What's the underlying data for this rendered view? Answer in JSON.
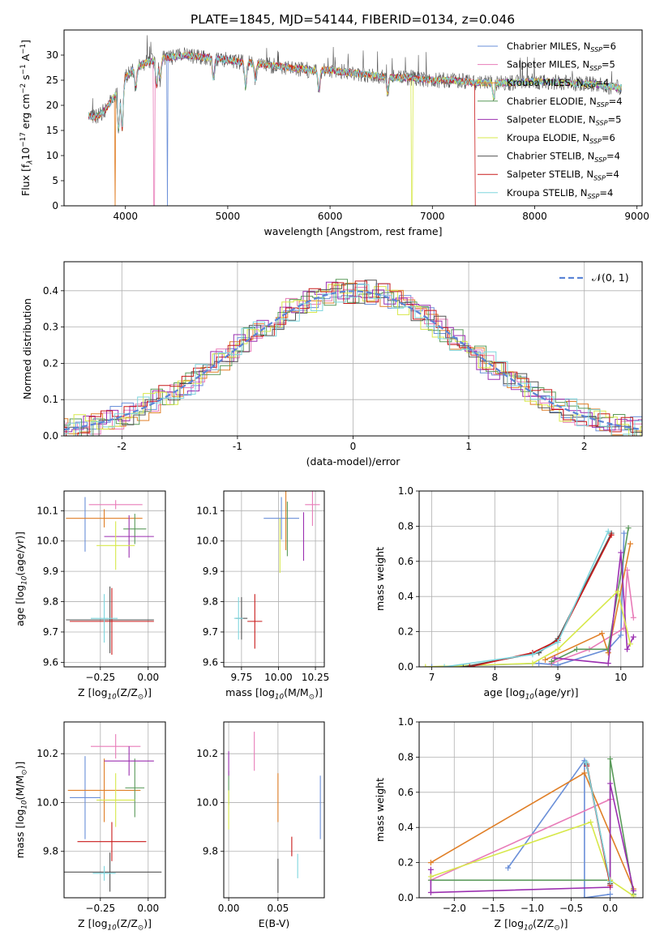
{
  "figure": {
    "title": "PLATE=1845, MJD=54144, FIBERID=0134, z=0.046"
  },
  "colors": {
    "series": [
      "#6a8fd8",
      "#e87bb8",
      "#e07f27",
      "#5a9a5a",
      "#9b2fb0",
      "#d7e84a",
      "#555555",
      "#c91a1a",
      "#7ed6de"
    ],
    "normal_curve": "#5b84d6",
    "grid": "#b0b0b0"
  },
  "series_names": [
    {
      "pre": "Chabrier MILES, N",
      "sub": "SSP",
      "post": "=6"
    },
    {
      "pre": "Salpeter MILES, N",
      "sub": "SSP",
      "post": "=5"
    },
    {
      "pre": "Kroupa MILES, N",
      "sub": "SSP",
      "post": "=4"
    },
    {
      "pre": "Chabrier ELODIE, N",
      "sub": "SSP",
      "post": "=4"
    },
    {
      "pre": "Salpeter ELODIE, N",
      "sub": "SSP",
      "post": "=5"
    },
    {
      "pre": "Kroupa ELODIE, N",
      "sub": "SSP",
      "post": "=6"
    },
    {
      "pre": "Chabrier STELIB, N",
      "sub": "SSP",
      "post": "=4"
    },
    {
      "pre": "Salpeter STELIB, N",
      "sub": "SSP",
      "post": "=4"
    },
    {
      "pre": "Kroupa STELIB, N",
      "sub": "SSP",
      "post": "=4"
    }
  ],
  "chart_data": [
    {
      "id": "spectrum",
      "type": "line",
      "xlabel": "wavelength [Angstrom, rest frame]",
      "ylabel": {
        "pre": "Flux [f",
        "sub": "λ",
        "mid": "10",
        "sup": "−17",
        "post": " erg cm",
        "sup2": "−2",
        "post2": " s",
        "sup3": "−1",
        "post3": " A",
        "sup4": "−1",
        "end": "]"
      },
      "xlim": [
        3400,
        9050
      ],
      "ylim": [
        0,
        35
      ],
      "xticks": [
        4000,
        5000,
        6000,
        7000,
        8000,
        9000
      ],
      "yticks": [
        0,
        5,
        10,
        15,
        20,
        25,
        30
      ],
      "grid": false,
      "legend": "top-right",
      "continuum": {
        "x": [
          3640,
          3700,
          3800,
          3900,
          4000,
          4100,
          4200,
          4400,
          4600,
          4800,
          5000,
          5200,
          5400,
          5600,
          5800,
          6000,
          6200,
          6400,
          6600,
          6800,
          7000,
          7200,
          7400,
          7600,
          7800,
          8000,
          8200,
          8400,
          8600,
          8800
        ],
        "y": [
          18,
          17.5,
          19,
          22,
          25.5,
          27.5,
          28.5,
          29.5,
          30,
          29.5,
          29,
          28.5,
          28,
          27.5,
          27,
          27,
          26.5,
          26,
          25.5,
          25.5,
          25,
          25,
          24.5,
          24.5,
          24.5,
          24.8,
          24.6,
          24.3,
          24.2,
          23.5
        ]
      },
      "absorption_dips": [
        {
          "x": 3933,
          "depth": 8
        },
        {
          "x": 3968,
          "depth": 9
        },
        {
          "x": 4101,
          "depth": 4
        },
        {
          "x": 4305,
          "depth": 5
        },
        {
          "x": 4340,
          "depth": 4
        },
        {
          "x": 4861,
          "depth": 4
        },
        {
          "x": 5175,
          "depth": 5
        },
        {
          "x": 5270,
          "depth": 3
        },
        {
          "x": 5890,
          "depth": 4
        },
        {
          "x": 6563,
          "depth": 3
        },
        {
          "x": 7600,
          "depth": 3
        }
      ],
      "drops_to_zero": [
        {
          "series": 2,
          "x": 3900
        },
        {
          "series": 1,
          "x": 4280
        },
        {
          "series": 0,
          "x": 4410
        },
        {
          "series": 5,
          "x": 6800
        },
        {
          "series": 7,
          "x": 7420
        }
      ]
    },
    {
      "id": "residuals",
      "type": "area",
      "xlabel": "(data-model)/error",
      "ylabel": "Normed distribution",
      "xlim": [
        -2.5,
        2.5
      ],
      "ylim": [
        0,
        0.48
      ],
      "xticks": [
        -2,
        -1,
        0,
        1,
        2
      ],
      "yticks": [
        0.0,
        0.1,
        0.2,
        0.3,
        0.4
      ],
      "grid": true,
      "legend": "top-right",
      "bin_width": 0.1,
      "normal_label": "𝒩(0, 1)"
    },
    {
      "id": "age_vs_Z",
      "type": "scatter",
      "xlabel": {
        "pre": "Z [log",
        "sub": "10",
        "post": "(Z/Z",
        "sub2": "⊙",
        "end": ")]"
      },
      "ylabel": {
        "pre": "age  [log",
        "sub": "10",
        "post": "(age/yr)]"
      },
      "xlim": [
        -0.44,
        0.09
      ],
      "ylim": [
        9.585,
        10.165
      ],
      "xticks": [
        -0.25,
        0.0
      ],
      "xtick_labels": [
        "−0.25",
        "0.00"
      ],
      "yticks": [
        9.6,
        9.7,
        9.8,
        9.9,
        10.0,
        10.1
      ],
      "grid": true,
      "points": [
        {
          "s": 0,
          "x": -0.33,
          "y": 10.055,
          "xe": 0.0,
          "ye": 0.09
        },
        {
          "s": 1,
          "x": -0.17,
          "y": 10.12,
          "xe": 0.14,
          "ye": 0.015
        },
        {
          "s": 2,
          "x": -0.23,
          "y": 10.075,
          "xe": 0.2,
          "ye": 0.03
        },
        {
          "s": 3,
          "x": -0.07,
          "y": 10.04,
          "xe": 0.06,
          "ye": 0.05
        },
        {
          "s": 4,
          "x": -0.1,
          "y": 10.015,
          "xe": 0.13,
          "ye": 0.07
        },
        {
          "s": 5,
          "x": -0.17,
          "y": 9.985,
          "xe": 0.1,
          "ye": 0.08
        },
        {
          "s": 6,
          "x": -0.2,
          "y": 9.74,
          "xe": 0.23,
          "ye": 0.11
        },
        {
          "s": 7,
          "x": -0.19,
          "y": 9.735,
          "xe": 0.22,
          "ye": 0.11
        },
        {
          "s": 8,
          "x": -0.23,
          "y": 9.745,
          "xe": 0.07,
          "ye": 0.08
        }
      ]
    },
    {
      "id": "age_vs_mass",
      "type": "scatter",
      "xlabel": {
        "pre": "mass [log",
        "sub": "10",
        "post": "(M/M",
        "sub2": "⊙",
        "end": ")]"
      },
      "ylabel": "",
      "xlim": [
        9.63,
        10.31
      ],
      "ylim": [
        9.585,
        10.165
      ],
      "xticks": [
        9.75,
        10.0,
        10.25
      ],
      "xtick_labels": [
        "9.75",
        "10.00",
        "10.25"
      ],
      "yticks": [
        9.6,
        9.7,
        9.8,
        9.9,
        10.0,
        10.1
      ],
      "grid": true,
      "points": [
        {
          "s": 0,
          "x": 10.02,
          "y": 10.075,
          "xe": 0.12,
          "ye": 0.07
        },
        {
          "s": 1,
          "x": 10.23,
          "y": 10.12,
          "xe": 0.05,
          "ye": 0.07
        },
        {
          "s": 2,
          "x": 10.05,
          "y": 10.07,
          "xe": 0.0,
          "ye": 0.1
        },
        {
          "s": 3,
          "x": 10.06,
          "y": 10.04,
          "xe": 0.0,
          "ye": 0.09
        },
        {
          "s": 4,
          "x": 10.17,
          "y": 10.015,
          "xe": 0.0,
          "ye": 0.08
        },
        {
          "s": 5,
          "x": 10.01,
          "y": 9.985,
          "xe": 0.0,
          "ye": 0.09
        },
        {
          "s": 6,
          "x": 9.75,
          "y": 9.745,
          "xe": 0.04,
          "ye": 0.07
        },
        {
          "s": 7,
          "x": 9.84,
          "y": 9.735,
          "xe": 0.05,
          "ye": 0.09
        },
        {
          "s": 8,
          "x": 9.73,
          "y": 9.745,
          "xe": 0.03,
          "ye": 0.07
        }
      ]
    },
    {
      "id": "massweight_vs_age",
      "type": "line",
      "xlabel": {
        "pre": "age  [log",
        "sub": "10",
        "post": "(age/yr)]"
      },
      "ylabel": "mass weight",
      "xlim": [
        6.8,
        10.35
      ],
      "ylim": [
        0,
        1
      ],
      "xticks": [
        7,
        8,
        9,
        10
      ],
      "yticks": [
        0.0,
        0.2,
        0.4,
        0.6,
        0.8,
        1.0
      ],
      "grid": true,
      "series": [
        {
          "s": 0,
          "x": [
            7.0,
            8.7,
            9.0,
            9.8,
            10.0,
            10.05
          ],
          "y": [
            0.0,
            0.02,
            0.01,
            0.1,
            0.18,
            0.76
          ]
        },
        {
          "s": 1,
          "x": [
            8.9,
            9.5,
            10.05,
            10.1,
            10.2
          ],
          "y": [
            0.02,
            0.1,
            0.22,
            0.55,
            0.28
          ]
        },
        {
          "s": 2,
          "x": [
            8.8,
            9.7,
            9.8,
            10.15
          ],
          "y": [
            0.04,
            0.19,
            0.08,
            0.7
          ]
        },
        {
          "s": 3,
          "x": [
            8.9,
            9.3,
            9.8,
            10.12
          ],
          "y": [
            0.03,
            0.1,
            0.1,
            0.79
          ]
        },
        {
          "s": 4,
          "x": [
            8.95,
            9.8,
            10.0,
            10.1,
            10.2
          ],
          "y": [
            0.05,
            0.02,
            0.65,
            0.1,
            0.17
          ]
        },
        {
          "s": 5,
          "x": [
            6.9,
            8.6,
            9.0,
            9.95,
            10.15
          ],
          "y": [
            0.0,
            0.02,
            0.1,
            0.43,
            0.13
          ]
        },
        {
          "s": 6,
          "x": [
            7.5,
            8.7,
            9.0,
            9.85
          ],
          "y": [
            0.0,
            0.08,
            0.16,
            0.76
          ]
        },
        {
          "s": 7,
          "x": [
            7.6,
            8.6,
            9.0,
            9.85
          ],
          "y": [
            0.0,
            0.08,
            0.15,
            0.75
          ]
        },
        {
          "s": 8,
          "x": [
            7.2,
            8.6,
            9.0,
            9.8
          ],
          "y": [
            0.0,
            0.07,
            0.14,
            0.77
          ]
        }
      ]
    },
    {
      "id": "mass_vs_Z",
      "type": "scatter",
      "xlabel": {
        "pre": "Z [log",
        "sub": "10",
        "post": "(Z/Z",
        "sub2": "⊙",
        "end": ")]"
      },
      "ylabel": {
        "pre": "mass [log",
        "sub": "10",
        "post": "(M/M",
        "sub2": "⊙",
        "end": ")]"
      },
      "xlim": [
        -0.44,
        0.09
      ],
      "ylim": [
        9.61,
        10.33
      ],
      "xticks": [
        -0.25,
        0.0
      ],
      "xtick_labels": [
        "−0.25",
        "0.00"
      ],
      "yticks": [
        9.8,
        10.0,
        10.2
      ],
      "grid": true,
      "points": [
        {
          "s": 0,
          "x": -0.33,
          "y": 10.02,
          "xe": 0.08,
          "ye": 0.17
        },
        {
          "s": 1,
          "x": -0.17,
          "y": 10.23,
          "xe": 0.13,
          "ye": 0.05
        },
        {
          "s": 2,
          "x": -0.23,
          "y": 10.05,
          "xe": 0.19,
          "ye": 0.13
        },
        {
          "s": 3,
          "x": -0.07,
          "y": 10.06,
          "xe": 0.05,
          "ye": 0.12
        },
        {
          "s": 4,
          "x": -0.1,
          "y": 10.17,
          "xe": 0.13,
          "ye": 0.06
        },
        {
          "s": 5,
          "x": -0.17,
          "y": 10.01,
          "xe": 0.1,
          "ye": 0.11
        },
        {
          "s": 6,
          "x": -0.2,
          "y": 9.715,
          "xe": 0.27,
          "ye": 0.08
        },
        {
          "s": 7,
          "x": -0.19,
          "y": 9.84,
          "xe": 0.18,
          "ye": 0.08
        },
        {
          "s": 8,
          "x": -0.23,
          "y": 9.71,
          "xe": 0.06,
          "ye": 0.03
        }
      ]
    },
    {
      "id": "mass_vs_EBV",
      "type": "scatter",
      "xlabel": "E(B-V)",
      "ylabel": "",
      "xlim": [
        -0.005,
        0.097
      ],
      "ylim": [
        9.61,
        10.33
      ],
      "xticks": [
        0.0,
        0.05
      ],
      "xtick_labels": [
        "0.00",
        "0.05"
      ],
      "yticks": [
        9.8,
        10.0,
        10.2
      ],
      "grid": true,
      "points": [
        {
          "s": 0,
          "x": 0.093,
          "y": 9.98,
          "xe": 0.0,
          "ye": 0.13
        },
        {
          "s": 1,
          "x": 0.026,
          "y": 10.21,
          "xe": 0.0,
          "ye": 0.08
        },
        {
          "s": 2,
          "x": 0.05,
          "y": 10.02,
          "xe": 0.0,
          "ye": 0.1
        },
        {
          "s": 3,
          "x": 0.0,
          "y": 10.06,
          "xe": 0.0,
          "ye": 0.07
        },
        {
          "s": 4,
          "x": 0.0,
          "y": 10.16,
          "xe": 0.0,
          "ye": 0.05
        },
        {
          "s": 5,
          "x": 0.0,
          "y": 9.97,
          "xe": 0.0,
          "ye": 0.08
        },
        {
          "s": 6,
          "x": 0.05,
          "y": 9.7,
          "xe": 0.0,
          "ye": 0.07
        },
        {
          "s": 7,
          "x": 0.064,
          "y": 9.82,
          "xe": 0.0,
          "ye": 0.04
        },
        {
          "s": 8,
          "x": 0.07,
          "y": 9.74,
          "xe": 0.0,
          "ye": 0.05
        }
      ]
    },
    {
      "id": "massweight_vs_Z",
      "type": "line",
      "xlabel": {
        "pre": "Z [log",
        "sub": "10",
        "post": "(Z/Z",
        "sub2": "⊙",
        "end": ")]"
      },
      "ylabel": "mass weight",
      "xlim": [
        -2.45,
        0.42
      ],
      "ylim": [
        0,
        1
      ],
      "xticks": [
        -2.0,
        -1.5,
        -1.0,
        -0.5,
        0.0
      ],
      "xtick_labels": [
        "−2.0",
        "−1.5",
        "−1.0",
        "−0.5",
        "0.0"
      ],
      "yticks": [
        0.0,
        0.2,
        0.4,
        0.6,
        0.8,
        1.0
      ],
      "grid": true,
      "series": [
        {
          "s": 0,
          "x": [
            -1.31,
            -0.33,
            -0.33,
            0.0
          ],
          "y": [
            0.17,
            0.78,
            0.0,
            0.02
          ]
        },
        {
          "s": 1,
          "x": [
            -2.3,
            0.0
          ],
          "y": [
            0.1,
            0.56
          ]
        },
        {
          "s": 2,
          "x": [
            -2.3,
            -0.33,
            0.3
          ],
          "y": [
            0.2,
            0.71,
            0.05
          ]
        },
        {
          "s": 3,
          "x": [
            -2.3,
            0.0,
            0.0,
            0.3
          ],
          "y": [
            0.1,
            0.1,
            0.79,
            0.02
          ]
        },
        {
          "s": 4,
          "x": [
            -2.3,
            -2.3,
            0.0,
            0.0,
            0.3
          ],
          "y": [
            0.16,
            0.03,
            0.06,
            0.65,
            0.04
          ]
        },
        {
          "s": 5,
          "x": [
            -2.3,
            -0.25,
            0.0,
            0.3
          ],
          "y": [
            0.12,
            0.43,
            0.1,
            0.01
          ]
        },
        {
          "s": 6,
          "x": [
            -0.3,
            0.0
          ],
          "y": [
            0.76,
            0.08
          ]
        },
        {
          "s": 7,
          "x": [
            -0.3,
            0.0
          ],
          "y": [
            0.75,
            0.07
          ]
        },
        {
          "s": 8,
          "x": [
            -0.31,
            0.0
          ],
          "y": [
            0.77,
            0.09
          ]
        }
      ]
    }
  ]
}
